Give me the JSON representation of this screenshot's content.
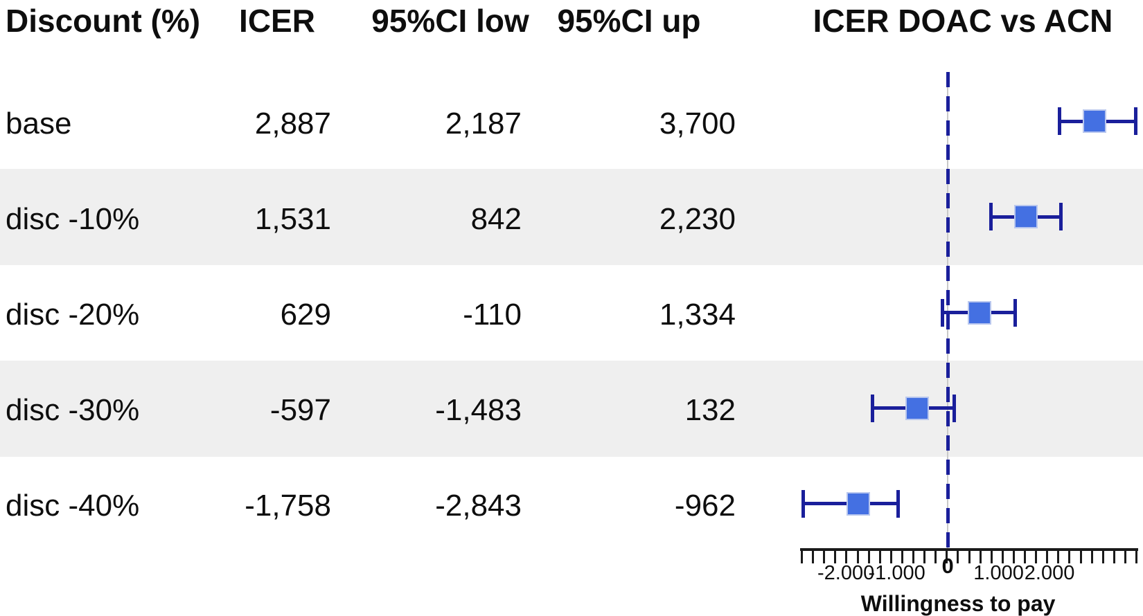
{
  "table": {
    "headers": {
      "discount": "Discount (%)",
      "icer": "ICER",
      "ci_low": "95%CI low",
      "ci_up": "95%CI up",
      "plot": "ICER DOAC vs ACN"
    },
    "rows": [
      {
        "label": "base",
        "icer": "2,887",
        "ci_low": "2,187",
        "ci_up": "3,700"
      },
      {
        "label": "disc -10%",
        "icer": "1,531",
        "ci_low": "842",
        "ci_up": "2,230"
      },
      {
        "label": "disc -20%",
        "icer": "629",
        "ci_low": "-110",
        "ci_up": "1,334"
      },
      {
        "label": "disc -30%",
        "icer": "-597",
        "ci_low": "-1,483",
        "ci_up": "132"
      },
      {
        "label": "disc -40%",
        "icer": "-1,758",
        "ci_low": "-2,843",
        "ci_up": "-962"
      }
    ]
  },
  "chart_data": {
    "type": "scatter",
    "subtype": "forest-plot",
    "title": "ICER DOAC vs ACN",
    "xlabel": "Willingness to pay",
    "xlim": [
      -2900,
      3700
    ],
    "grid": false,
    "zero_reference_line": true,
    "series": [
      {
        "name": "ICER DOAC vs ACN",
        "points": [
          {
            "label": "base",
            "icer": 2887,
            "ci_low": 2187,
            "ci_up": 3700
          },
          {
            "label": "disc -10%",
            "icer": 1531,
            "ci_low": 842,
            "ci_up": 2230
          },
          {
            "label": "disc -20%",
            "icer": 629,
            "ci_low": -110,
            "ci_up": 1334
          },
          {
            "label": "disc -30%",
            "icer": -597,
            "ci_low": -1483,
            "ci_up": 132
          },
          {
            "label": "disc -40%",
            "icer": -1758,
            "ci_low": -2843,
            "ci_up": -962
          }
        ]
      }
    ],
    "x_ticks": [
      {
        "value": -2000,
        "label": "-2.000"
      },
      {
        "value": -1000,
        "label": "-1.000"
      },
      {
        "value": 0,
        "label": "0"
      },
      {
        "value": 1000,
        "label": "1.000"
      },
      {
        "value": 2000,
        "label": "2.000"
      }
    ],
    "minor_tick_count": 31
  },
  "colors": {
    "marker_fill": "#4470e2",
    "marker_border": "#b9c7ee",
    "error_bar": "#1a1f9b",
    "dashed_zero_line": "#1a1f9b",
    "gray_zero_line": "#c9c9c9",
    "row_band": "#efefef",
    "axis": "#1a1a1a",
    "text": "#0e0e0e"
  }
}
